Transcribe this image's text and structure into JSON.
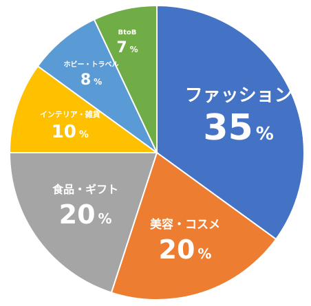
{
  "chart_data": {
    "type": "pie",
    "categories": [
      "ファッション",
      "美容・コスメ",
      "食品・ギフト",
      "インテリア・雑貨",
      "ホビー・トラベル",
      "BtoB"
    ],
    "values": [
      35,
      20,
      20,
      10,
      8,
      7
    ],
    "value_labels": [
      {
        "num": "35",
        "unit": "%"
      },
      {
        "num": "20",
        "unit": "%"
      },
      {
        "num": "20",
        "unit": "%"
      },
      {
        "num": "10",
        "unit": "%"
      },
      {
        "num": "8",
        "unit": "%"
      },
      {
        "num": "7",
        "unit": "%"
      }
    ],
    "colors": [
      "#4472C4",
      "#ED7D31",
      "#A5A5A5",
      "#FFC000",
      "#5B9BD5",
      "#70AD47"
    ],
    "start": "12 o'clock",
    "direction": "clockwise",
    "legend": "none"
  }
}
